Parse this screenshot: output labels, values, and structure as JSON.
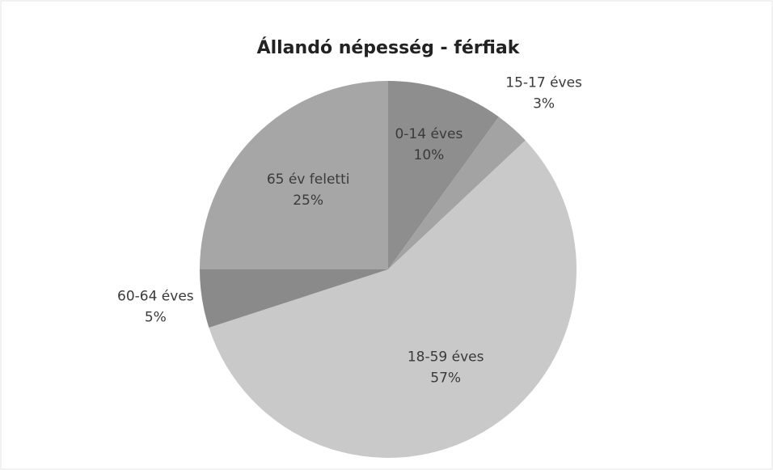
{
  "chart_data": {
    "type": "pie",
    "title": "Állandó népesség - férfiak",
    "categories": [
      "0-14 éves",
      "15-17 éves",
      "18-59 éves",
      "60-64 éves",
      "65 év feletti"
    ],
    "values": [
      10,
      3,
      57,
      5,
      25
    ],
    "value_labels": [
      "10%",
      "3%",
      "57%",
      "5%",
      "25%"
    ],
    "colors": [
      "#8e8e8e",
      "#a3a3a3",
      "#c9c9c9",
      "#8a8a8a",
      "#a6a6a6"
    ]
  }
}
